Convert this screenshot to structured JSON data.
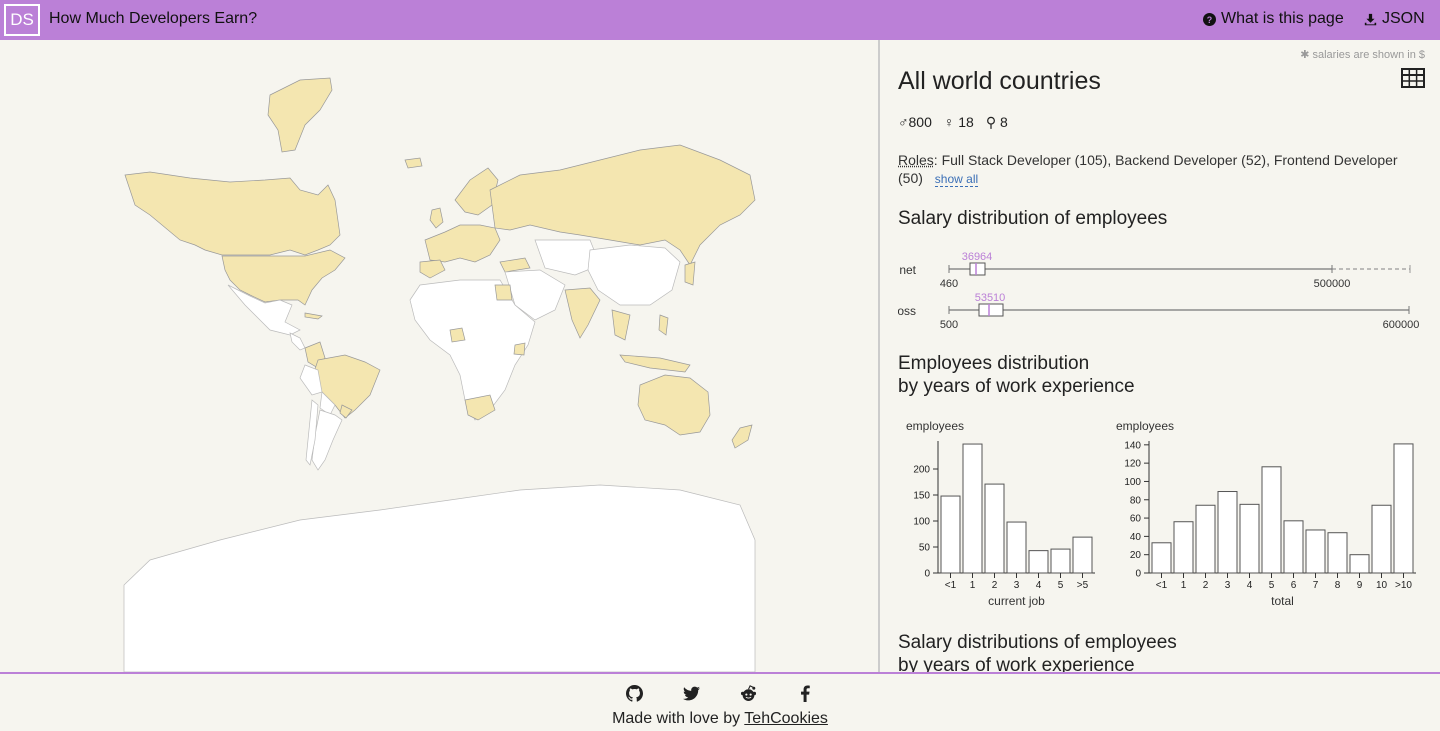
{
  "header": {
    "logo": "DS",
    "title": "How Much Developers Earn?",
    "about_label": "What is this page",
    "json_label": "JSON"
  },
  "sidebar": {
    "note": "✱ salaries are shown in $",
    "title": "All world countries",
    "gender": {
      "male": "800",
      "female": "18",
      "other": "8"
    },
    "roles_label": "Roles",
    "roles_text": ": Full Stack Developer (105), Backend Developer (52), Frontend Developer (50)",
    "show_all": "show all",
    "salary_title": "Salary distribution of employees",
    "exp_title_1": "Employees distribution",
    "exp_title_2": "by years of work experience",
    "salary_exp_title_1": "Salary distributions of employees",
    "salary_exp_title_2": "by years of work experience"
  },
  "boxplots": [
    {
      "label": "net",
      "min_label": "460",
      "max_label": "500000",
      "median_label": "36964"
    },
    {
      "label": "gross",
      "min_label": "500",
      "max_label": "600000",
      "median_label": "53510"
    }
  ],
  "chart_data": [
    {
      "type": "bar",
      "ylabel": "employees",
      "xlabel": "current job",
      "categories": [
        "<1",
        "1",
        "2",
        "3",
        "4",
        "5",
        ">5"
      ],
      "values": [
        148,
        248,
        171,
        98,
        43,
        46,
        69
      ],
      "yticks": [
        0,
        50,
        100,
        150,
        200
      ],
      "ylim": [
        0,
        250
      ]
    },
    {
      "type": "bar",
      "ylabel": "employees",
      "xlabel": "total",
      "categories": [
        "<1",
        "1",
        "2",
        "3",
        "4",
        "5",
        "6",
        "7",
        "8",
        "9",
        "10",
        ">10"
      ],
      "values": [
        33,
        56,
        74,
        89,
        75,
        116,
        57,
        47,
        44,
        20,
        74,
        141
      ],
      "yticks": [
        0,
        20,
        40,
        60,
        80,
        100,
        120,
        140
      ],
      "ylim": [
        0,
        142
      ]
    }
  ],
  "footer": {
    "made_text": "Made with love by ",
    "author": "TehCookies",
    "icons": [
      "github-icon",
      "twitter-icon",
      "reddit-icon",
      "facebook-icon"
    ]
  },
  "colors": {
    "accent": "#bb80d7",
    "active_country": "#f4e6b0",
    "median": "#bb80d7"
  }
}
